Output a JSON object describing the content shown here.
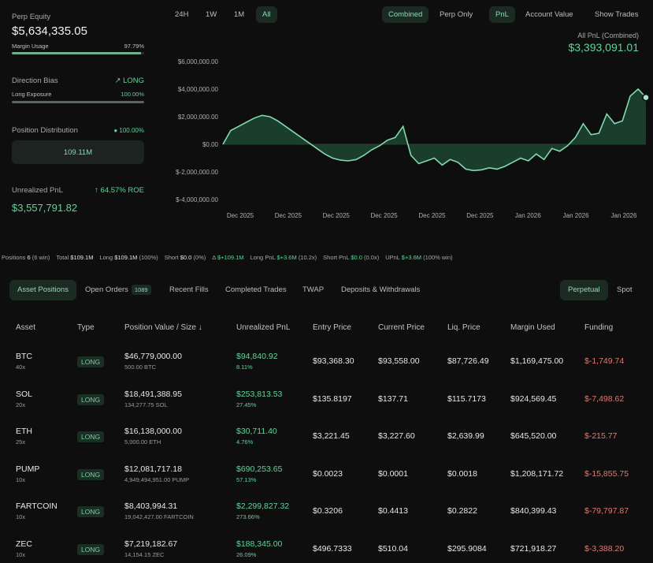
{
  "summary": {
    "perp_equity_label": "Perp Equity",
    "perp_equity_value": "$5,634,335.05",
    "margin_usage_label": "Margin Usage",
    "margin_usage_value": "97.79%",
    "margin_usage_fraction": 0.9779,
    "direction_bias_label": "Direction Bias",
    "direction_bias_value": "LONG",
    "long_exposure_label": "Long Exposure",
    "long_exposure_value": "100.00%",
    "long_exposure_fraction": 1.0,
    "position_distribution_label": "Position Distribution",
    "position_distribution_value": "100.00%",
    "position_distribution_amount": "109.11M",
    "unrealized_pnl_label": "Unrealized PnL",
    "roe": "64.57% ROE",
    "unrealized_pnl_value": "$3,557,791.82"
  },
  "chart_controls": {
    "ranges": [
      "24H",
      "1W",
      "1M",
      "All"
    ],
    "active_range": "All",
    "modes": [
      "Combined",
      "Perp Only"
    ],
    "active_mode": "Combined",
    "metrics": [
      "PnL",
      "Account Value"
    ],
    "active_metric": "PnL",
    "show_trades": "Show Trades"
  },
  "chart_header": {
    "label": "All PnL (Combined)",
    "value": "$3,393,091.01"
  },
  "chart_data": {
    "type": "area",
    "title": "",
    "xlabel": "",
    "ylabel": "",
    "ylim": [
      -4000000,
      6000000
    ],
    "yticks": [
      6000000,
      4000000,
      2000000,
      0,
      -2000000,
      -4000000
    ],
    "ytick_labels": [
      "$6,000,000.00",
      "$4,000,000.00",
      "$2,000,000.00",
      "$0.00",
      "$-2,000,000.00",
      "$-4,000,000.00"
    ],
    "xtick_labels": [
      "Dec 2025",
      "Dec 2025",
      "Dec 2025",
      "Dec 2025",
      "Dec 2025",
      "Dec 2025",
      "Jan 2026",
      "Jan 2026",
      "Jan 2026"
    ],
    "grid": false,
    "series": [
      {
        "values": [
          0,
          1000000,
          1300000,
          1600000,
          1900000,
          2100000,
          2000000,
          1700000,
          1300000,
          900000,
          500000,
          100000,
          -300000,
          -700000,
          -1000000,
          -1150000,
          -1200000,
          -1100000,
          -800000,
          -400000,
          -100000,
          300000,
          500000,
          1300000,
          -800000,
          -1400000,
          -1200000,
          -1000000,
          -1500000,
          -1100000,
          -1300000,
          -1800000,
          -1900000,
          -1850000,
          -1700000,
          -1800000,
          -1600000,
          -1300000,
          -1000000,
          -1200000,
          -700000,
          -1100000,
          -300000,
          -500000,
          -100000,
          500000,
          1500000,
          700000,
          800000,
          2200000,
          1500000,
          1700000,
          3500000,
          4000000,
          3400000
        ]
      }
    ],
    "end_value": 3393091.01
  },
  "stats": {
    "positions_label": "Positions",
    "positions_count": "6",
    "positions_win": "(6 win)",
    "total_label": "Total",
    "total_value": "$109.1M",
    "long_label": "Long",
    "long_value": "$109.1M",
    "long_pct": "(100%)",
    "short_label": "Short",
    "short_value": "$0.0",
    "short_pct": "(0%)",
    "delta_label": "Δ",
    "delta_value": "$+109.1M",
    "long_pnl_label": "Long PnL",
    "long_pnl_value": "$+3.6M",
    "long_pnl_x": "(10.2x)",
    "short_pnl_label": "Short PnL",
    "short_pnl_value": "$0.0",
    "short_pnl_x": "(0.0x)",
    "upnl_label": "UPnL",
    "upnl_value": "$+3.6M",
    "upnl_win": "(100% win)"
  },
  "tabs": {
    "asset_positions": "Asset Positions",
    "open_orders": "Open Orders",
    "open_orders_count": "1089",
    "recent_fills": "Recent Fills",
    "completed_trades": "Completed Trades",
    "twap": "TWAP",
    "deposits": "Deposits & Withdrawals",
    "perpetual": "Perpetual",
    "spot": "Spot"
  },
  "table": {
    "headers": {
      "asset": "Asset",
      "type": "Type",
      "position_value": "Position Value / Size",
      "sort_icon": "↓",
      "unrealized_pnl": "Unrealized PnL",
      "entry_price": "Entry Price",
      "current_price": "Current Price",
      "liq_price": "Liq. Price",
      "margin_used": "Margin Used",
      "funding": "Funding"
    },
    "rows": [
      {
        "asset": "BTC",
        "leverage": "40x",
        "type": "LONG",
        "value": "$46,779,000.00",
        "size": "500.00 BTC",
        "upnl": "$94,840.92",
        "upnl_pct": "8.11%",
        "entry": "$93,368.30",
        "current": "$93,558.00",
        "liq": "$87,726.49",
        "margin": "$1,169,475.00",
        "funding": "$-1,749.74"
      },
      {
        "asset": "SOL",
        "leverage": "20x",
        "type": "LONG",
        "value": "$18,491,388.95",
        "size": "134,277.75 SOL",
        "upnl": "$253,813.53",
        "upnl_pct": "27.45%",
        "entry": "$135.8197",
        "current": "$137.71",
        "liq": "$115.7173",
        "margin": "$924,569.45",
        "funding": "$-7,498.62"
      },
      {
        "asset": "ETH",
        "leverage": "25x",
        "type": "LONG",
        "value": "$16,138,000.00",
        "size": "5,000.00 ETH",
        "upnl": "$30,711.40",
        "upnl_pct": "4.76%",
        "entry": "$3,221.45",
        "current": "$3,227.60",
        "liq": "$2,639.99",
        "margin": "$645,520.00",
        "funding": "$-215.77"
      },
      {
        "asset": "PUMP",
        "leverage": "10x",
        "type": "LONG",
        "value": "$12,081,717.18",
        "size": "4,949,494,951.00 PUMP",
        "upnl": "$690,253.65",
        "upnl_pct": "57.13%",
        "entry": "$0.0023",
        "current": "$0.0001",
        "liq": "$0.0018",
        "margin": "$1,208,171.72",
        "funding": "$-15,855.75"
      },
      {
        "asset": "FARTCOIN",
        "leverage": "10x",
        "type": "LONG",
        "value": "$8,403,994.31",
        "size": "19,042,427.00 FARTCOIN",
        "upnl": "$2,299,827.32",
        "upnl_pct": "273.66%",
        "entry": "$0.3206",
        "current": "$0.4413",
        "liq": "$0.2822",
        "margin": "$840,399.43",
        "funding": "$-79,797.87"
      },
      {
        "asset": "ZEC",
        "leverage": "10x",
        "type": "LONG",
        "value": "$7,219,182.67",
        "size": "14,154.15 ZEC",
        "upnl": "$188,345.00",
        "upnl_pct": "26.09%",
        "entry": "$496.7333",
        "current": "$510.04",
        "liq": "$295.9084",
        "margin": "$721,918.27",
        "funding": "$-3,388.20"
      }
    ]
  },
  "colors": {
    "accent": "#5fd49a",
    "negative": "#e07a72",
    "background": "#0e0e0e"
  }
}
